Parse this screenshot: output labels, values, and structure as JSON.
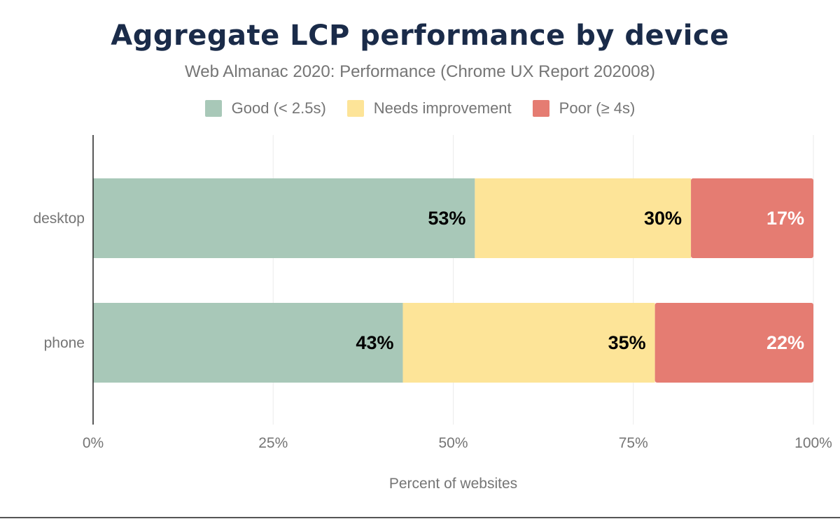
{
  "chart_data": {
    "type": "bar",
    "orientation": "horizontal",
    "stacked": true,
    "title": "Aggregate LCP performance by device",
    "subtitle": "Web Almanac 2020: Performance (Chrome UX Report 202008)",
    "xlabel": "Percent of websites",
    "ylabel": "",
    "xlim": [
      0,
      100
    ],
    "x_ticks": [
      "0%",
      "25%",
      "50%",
      "75%",
      "100%"
    ],
    "x_tick_values": [
      0,
      25,
      50,
      75,
      100
    ],
    "grid": true,
    "legend_position": "top",
    "categories": [
      "desktop",
      "phone"
    ],
    "series": [
      {
        "name": "Good (< 2.5s)",
        "color": "#a8c8b8",
        "label_color": "#000000",
        "values": [
          53,
          43
        ],
        "labels": [
          "53%",
          "43%"
        ]
      },
      {
        "name": "Needs improvement",
        "color": "#fde498",
        "label_color": "#000000",
        "values": [
          30,
          35
        ],
        "labels": [
          "30%",
          "35%"
        ]
      },
      {
        "name": "Poor (≥ 4s)",
        "color": "#e57c72",
        "label_color": "#ffffff",
        "values": [
          17,
          22
        ],
        "labels": [
          "17%",
          "22%"
        ]
      }
    ]
  }
}
